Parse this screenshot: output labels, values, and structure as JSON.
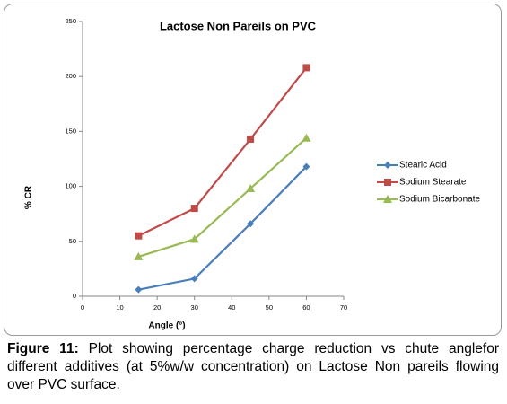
{
  "chart_data": {
    "type": "line",
    "title": "Lactose Non Pareils on PVC",
    "xlabel": "Angle (°)",
    "ylabel": "% CR",
    "x": [
      15,
      30,
      45,
      60
    ],
    "series": [
      {
        "name": "Stearic Acid",
        "color": "#4a7ebb",
        "marker": "diamond",
        "values": [
          6,
          16,
          66,
          118
        ]
      },
      {
        "name": "Sodium Stearate",
        "color": "#be4b48",
        "marker": "square",
        "values": [
          55,
          80,
          143,
          208
        ]
      },
      {
        "name": "Sodium Bicarbonate",
        "color": "#98b954",
        "marker": "triangle",
        "values": [
          36,
          52,
          98,
          144
        ]
      }
    ],
    "xlim": [
      0,
      70
    ],
    "xticks": [
      0,
      10,
      20,
      30,
      40,
      50,
      60,
      70
    ],
    "ylim": [
      0,
      250
    ],
    "yticks": [
      0,
      50,
      100,
      150,
      200,
      250
    ],
    "grid": false,
    "legend": "right"
  },
  "caption": {
    "label": "Figure 11:",
    "text": "Plot showing percentage charge reduction vs chute anglefor different additives (at 5%w/w concentration) on Lactose Non pareils flowing over PVC surface."
  }
}
